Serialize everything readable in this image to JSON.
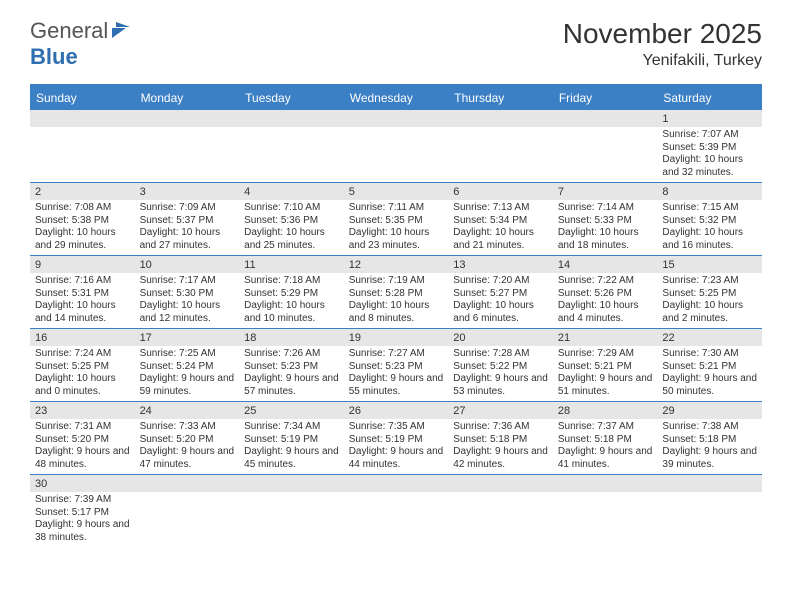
{
  "logo": {
    "general": "General",
    "blue": "Blue"
  },
  "title": "November 2025",
  "location": "Yenifakili, Turkey",
  "colors": {
    "header_bg": "#3b7fc4",
    "header_text": "#ffffff",
    "daynum_bg": "#e6e6e6",
    "border": "#3b7fc4",
    "text": "#333333",
    "logo_blue": "#2f6fb0"
  },
  "day_names": [
    "Sunday",
    "Monday",
    "Tuesday",
    "Wednesday",
    "Thursday",
    "Friday",
    "Saturday"
  ],
  "weeks": [
    [
      null,
      null,
      null,
      null,
      null,
      null,
      {
        "n": "1",
        "sunrise": "7:07 AM",
        "sunset": "5:39 PM",
        "daylight": "10 hours and 32 minutes."
      }
    ],
    [
      {
        "n": "2",
        "sunrise": "7:08 AM",
        "sunset": "5:38 PM",
        "daylight": "10 hours and 29 minutes."
      },
      {
        "n": "3",
        "sunrise": "7:09 AM",
        "sunset": "5:37 PM",
        "daylight": "10 hours and 27 minutes."
      },
      {
        "n": "4",
        "sunrise": "7:10 AM",
        "sunset": "5:36 PM",
        "daylight": "10 hours and 25 minutes."
      },
      {
        "n": "5",
        "sunrise": "7:11 AM",
        "sunset": "5:35 PM",
        "daylight": "10 hours and 23 minutes."
      },
      {
        "n": "6",
        "sunrise": "7:13 AM",
        "sunset": "5:34 PM",
        "daylight": "10 hours and 21 minutes."
      },
      {
        "n": "7",
        "sunrise": "7:14 AM",
        "sunset": "5:33 PM",
        "daylight": "10 hours and 18 minutes."
      },
      {
        "n": "8",
        "sunrise": "7:15 AM",
        "sunset": "5:32 PM",
        "daylight": "10 hours and 16 minutes."
      }
    ],
    [
      {
        "n": "9",
        "sunrise": "7:16 AM",
        "sunset": "5:31 PM",
        "daylight": "10 hours and 14 minutes."
      },
      {
        "n": "10",
        "sunrise": "7:17 AM",
        "sunset": "5:30 PM",
        "daylight": "10 hours and 12 minutes."
      },
      {
        "n": "11",
        "sunrise": "7:18 AM",
        "sunset": "5:29 PM",
        "daylight": "10 hours and 10 minutes."
      },
      {
        "n": "12",
        "sunrise": "7:19 AM",
        "sunset": "5:28 PM",
        "daylight": "10 hours and 8 minutes."
      },
      {
        "n": "13",
        "sunrise": "7:20 AM",
        "sunset": "5:27 PM",
        "daylight": "10 hours and 6 minutes."
      },
      {
        "n": "14",
        "sunrise": "7:22 AM",
        "sunset": "5:26 PM",
        "daylight": "10 hours and 4 minutes."
      },
      {
        "n": "15",
        "sunrise": "7:23 AM",
        "sunset": "5:25 PM",
        "daylight": "10 hours and 2 minutes."
      }
    ],
    [
      {
        "n": "16",
        "sunrise": "7:24 AM",
        "sunset": "5:25 PM",
        "daylight": "10 hours and 0 minutes."
      },
      {
        "n": "17",
        "sunrise": "7:25 AM",
        "sunset": "5:24 PM",
        "daylight": "9 hours and 59 minutes."
      },
      {
        "n": "18",
        "sunrise": "7:26 AM",
        "sunset": "5:23 PM",
        "daylight": "9 hours and 57 minutes."
      },
      {
        "n": "19",
        "sunrise": "7:27 AM",
        "sunset": "5:23 PM",
        "daylight": "9 hours and 55 minutes."
      },
      {
        "n": "20",
        "sunrise": "7:28 AM",
        "sunset": "5:22 PM",
        "daylight": "9 hours and 53 minutes."
      },
      {
        "n": "21",
        "sunrise": "7:29 AM",
        "sunset": "5:21 PM",
        "daylight": "9 hours and 51 minutes."
      },
      {
        "n": "22",
        "sunrise": "7:30 AM",
        "sunset": "5:21 PM",
        "daylight": "9 hours and 50 minutes."
      }
    ],
    [
      {
        "n": "23",
        "sunrise": "7:31 AM",
        "sunset": "5:20 PM",
        "daylight": "9 hours and 48 minutes."
      },
      {
        "n": "24",
        "sunrise": "7:33 AM",
        "sunset": "5:20 PM",
        "daylight": "9 hours and 47 minutes."
      },
      {
        "n": "25",
        "sunrise": "7:34 AM",
        "sunset": "5:19 PM",
        "daylight": "9 hours and 45 minutes."
      },
      {
        "n": "26",
        "sunrise": "7:35 AM",
        "sunset": "5:19 PM",
        "daylight": "9 hours and 44 minutes."
      },
      {
        "n": "27",
        "sunrise": "7:36 AM",
        "sunset": "5:18 PM",
        "daylight": "9 hours and 42 minutes."
      },
      {
        "n": "28",
        "sunrise": "7:37 AM",
        "sunset": "5:18 PM",
        "daylight": "9 hours and 41 minutes."
      },
      {
        "n": "29",
        "sunrise": "7:38 AM",
        "sunset": "5:18 PM",
        "daylight": "9 hours and 39 minutes."
      }
    ],
    [
      {
        "n": "30",
        "sunrise": "7:39 AM",
        "sunset": "5:17 PM",
        "daylight": "9 hours and 38 minutes."
      },
      null,
      null,
      null,
      null,
      null,
      null
    ]
  ]
}
